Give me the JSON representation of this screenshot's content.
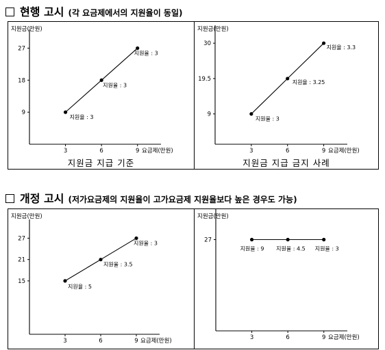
{
  "sections": [
    {
      "title": "현행 고시",
      "subtitle": "(각 요금제에서의 지원율이 동일)",
      "captions": [
        "지원금 지급 기준",
        "지원금 지급 금지 사례"
      ]
    },
    {
      "title": "개정 고시",
      "subtitle": "(저가요금제의 지원율이 고가요금제 지원율보다 높은 경우도 가능)",
      "captions": [
        "",
        ""
      ]
    }
  ],
  "colors": {
    "line": "#000000",
    "point": "#000000",
    "axis": "#000000"
  },
  "chart_data": [
    {
      "type": "line",
      "ylabel": "지원금(만원)",
      "xlabel": "요금제(만원)",
      "x": [
        3,
        6,
        9
      ],
      "y": [
        9,
        18,
        27
      ],
      "yticks": [
        9,
        18,
        27
      ],
      "xticks": [
        3,
        6,
        9
      ],
      "point_labels": [
        "지원율 : 3",
        "지원율 : 3",
        "지원율 : 3"
      ],
      "xlim": [
        0,
        10.5
      ],
      "ylim": [
        0,
        31.5
      ],
      "grid": false
    },
    {
      "type": "line",
      "ylabel": "지원금(만원)",
      "xlabel": "요금제(만원)",
      "x": [
        3,
        6,
        9
      ],
      "y": [
        9,
        19.5,
        30
      ],
      "yticks": [
        9,
        19.5,
        30
      ],
      "xticks": [
        3,
        6,
        9
      ],
      "point_labels": [
        "지원율 : 3",
        "지원율 : 3.25",
        "지원율 : 3.3"
      ],
      "xlim": [
        0,
        10.5
      ],
      "ylim": [
        0,
        34.5
      ],
      "grid": false
    },
    {
      "type": "line",
      "ylabel": "지원금(만원)",
      "xlabel": "요금제(만원)",
      "x": [
        3,
        6,
        9
      ],
      "y": [
        15,
        21,
        27
      ],
      "yticks": [
        15,
        21,
        27
      ],
      "xticks": [
        3,
        6,
        9
      ],
      "point_labels": [
        "지원율 : 5",
        "지원율 : 3.5",
        "지원율 : 3"
      ],
      "xlim": [
        0,
        10.5
      ],
      "ylim": [
        0,
        31.5
      ],
      "grid": false
    },
    {
      "type": "line",
      "ylabel": "지원금(만원)",
      "xlabel": "요금제(만원)",
      "x": [
        3,
        6,
        9
      ],
      "y": [
        27,
        27,
        27
      ],
      "yticks": [
        27
      ],
      "xticks": [
        3,
        6,
        9
      ],
      "point_labels": [
        "지원율 : 9",
        "지원율 : 4.5",
        "지원율 : 3"
      ],
      "xlim": [
        0,
        10.5
      ],
      "ylim": [
        0,
        36
      ],
      "grid": false
    }
  ]
}
